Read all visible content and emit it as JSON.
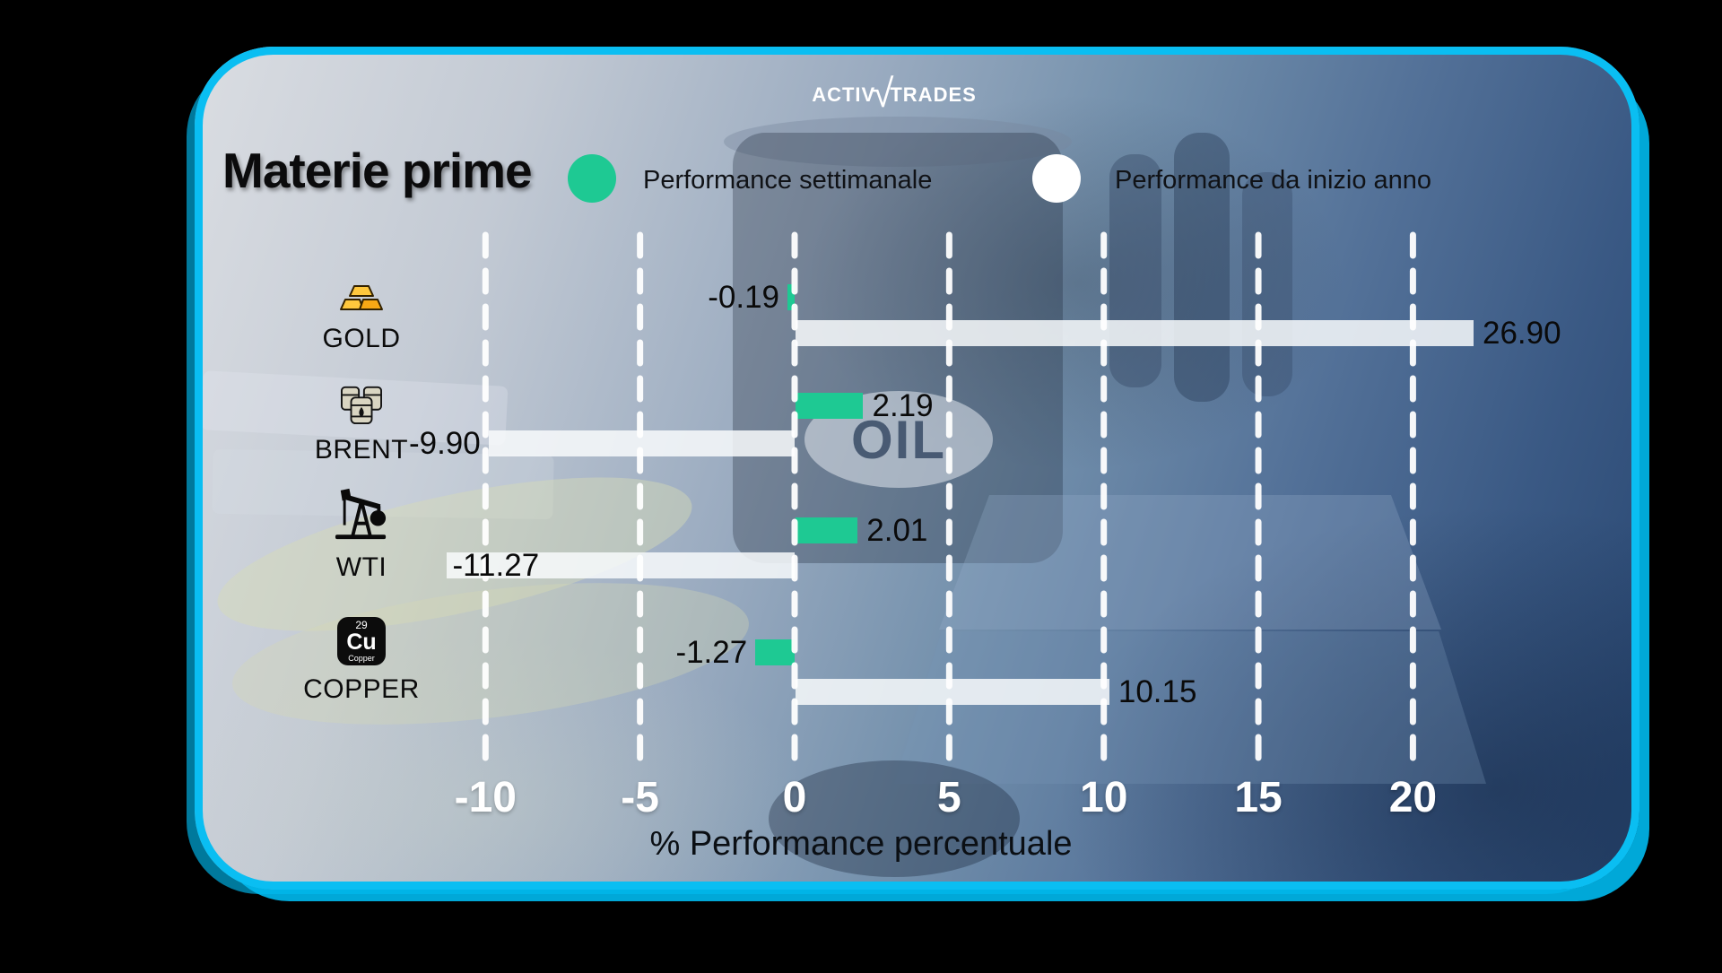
{
  "brand": {
    "left": "Activ",
    "radical": "√",
    "right": "Trades"
  },
  "header": {
    "title": "Materie prime"
  },
  "legend": {
    "weekly": {
      "label": "Performance settimanale",
      "color": "#1ec993"
    },
    "ytd": {
      "label": "Performance da inizio anno",
      "color": "#ffffff"
    }
  },
  "background": {
    "oil_label": "OIL"
  },
  "axis": {
    "title": "% Performance percentuale",
    "ticks": [
      -10,
      -5,
      0,
      5,
      10,
      15,
      20
    ]
  },
  "chart_data": {
    "type": "bar",
    "orientation": "horizontal",
    "title": "Materie prime",
    "xlabel": "% Performance percentuale",
    "xlim": [
      -12.5,
      22
    ],
    "gridlines": "vertical-dashed-white",
    "legend_position": "top",
    "categories": [
      "GOLD",
      "BRENT",
      "WTI",
      "COPPER"
    ],
    "series": [
      {
        "name": "Performance settimanale",
        "color": "#1ec993",
        "values": [
          -0.19,
          2.19,
          2.01,
          -1.27
        ]
      },
      {
        "name": "Performance da inizio anno",
        "color": "#f4f7fa",
        "values": [
          26.9,
          -9.9,
          -11.27,
          10.15
        ]
      }
    ]
  },
  "copper_tile": {
    "number": "29",
    "symbol": "Cu",
    "name": "Copper"
  },
  "colors": {
    "card_border": "#0abef2",
    "weekly_bar": "#1ec993",
    "ytd_bar": "rgba(248,250,252,0.85)",
    "background_base": "#28456e"
  }
}
